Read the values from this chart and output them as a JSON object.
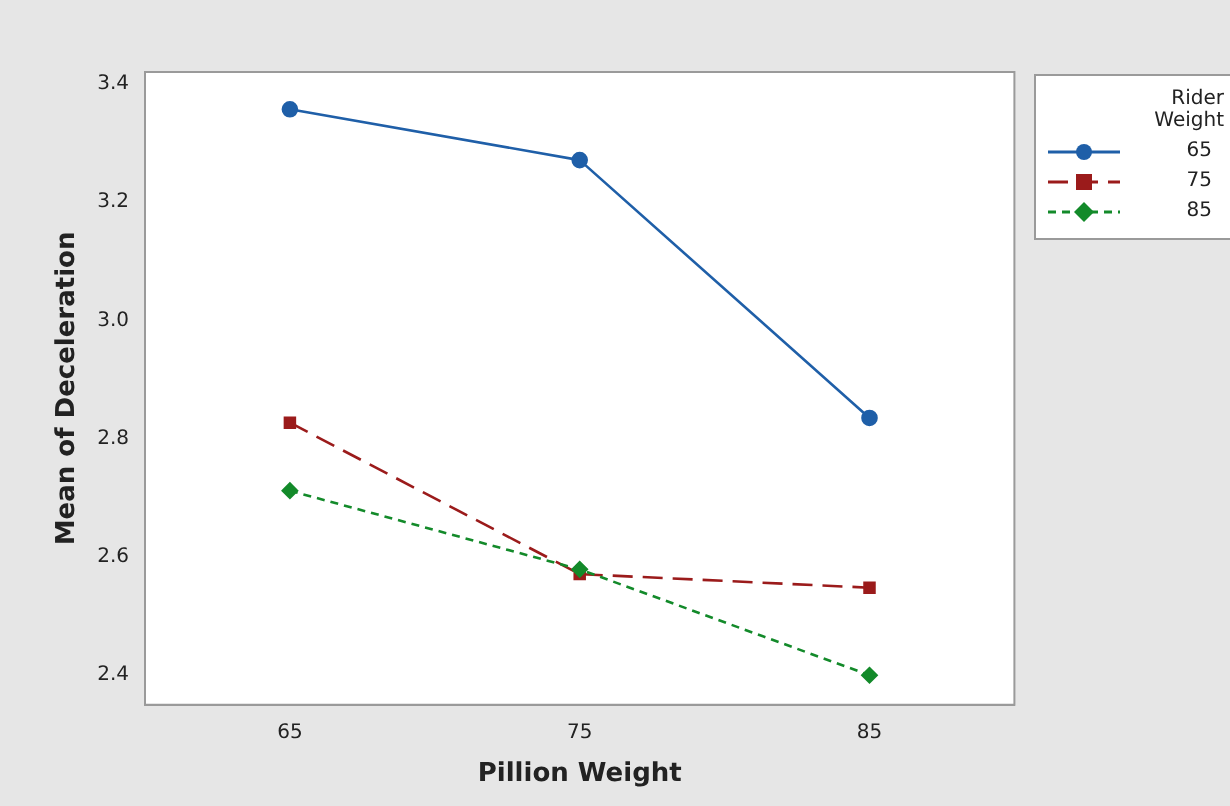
{
  "chart_data": {
    "type": "line",
    "xlabel": "Pillion Weight",
    "ylabel": "Mean of Deceleration",
    "legend_title": "Rider\nWeight",
    "x": [
      65,
      75,
      85
    ],
    "series": [
      {
        "name": "65",
        "color": "#1f5fa8",
        "values": [
          3.357,
          3.271,
          2.835
        ],
        "marker": "circle",
        "line_style": "solid"
      },
      {
        "name": "75",
        "color": "#9b1b1b",
        "values": [
          2.827,
          2.571,
          2.548
        ],
        "marker": "square",
        "line_style": "dashed"
      },
      {
        "name": "85",
        "color": "#138a2a",
        "values": [
          2.712,
          2.579,
          2.4
        ],
        "marker": "diamond",
        "line_style": "dotted"
      }
    ],
    "xlim": [
      60,
      90
    ],
    "xticks": [
      65,
      75,
      85
    ],
    "ylim": [
      2.35,
      3.42
    ],
    "yticks": [
      2.4,
      2.6,
      2.8,
      {
        "value": 3,
        "label": "3.0"
      },
      3.2,
      3.4
    ],
    "legend": "top right",
    "grid": false
  }
}
